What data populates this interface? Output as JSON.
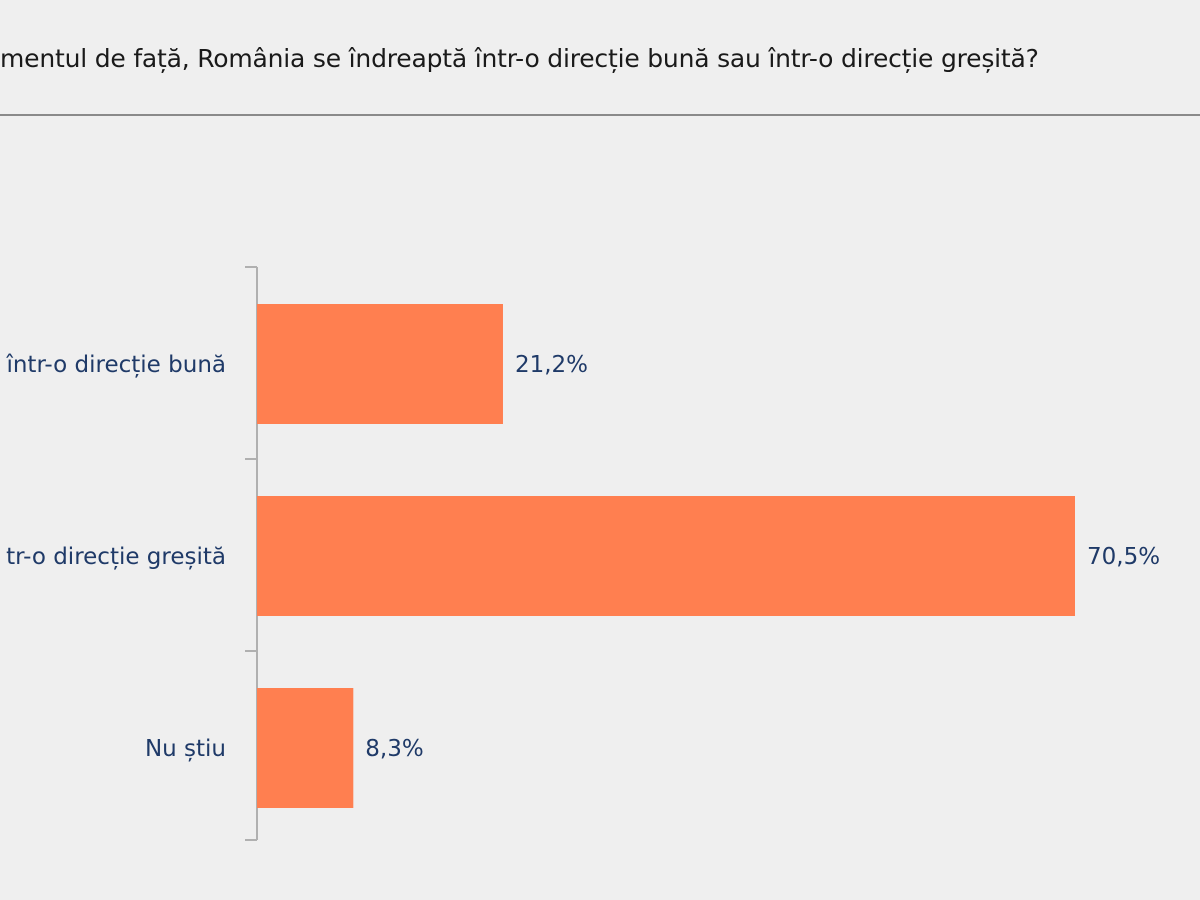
{
  "header": {
    "title": "mentul de față, România se îndreaptă într-o direcție bună sau într-o direcție greșită?"
  },
  "colors": {
    "bar": "#ff7f50",
    "text": "#1f3a68",
    "axis": "#b0b0b0",
    "background": "#efefef"
  },
  "chart_data": {
    "type": "bar",
    "orientation": "horizontal",
    "categories": [
      "într-o direcție bună",
      "tr-o direcție greșită",
      "Nu știu"
    ],
    "values": [
      21.2,
      70.5,
      8.3
    ],
    "value_labels": [
      "21,2%",
      "70,5%",
      "8,3%"
    ],
    "unit": "%",
    "xlim": [
      0,
      70.5
    ],
    "grid": false,
    "legend": "none"
  }
}
